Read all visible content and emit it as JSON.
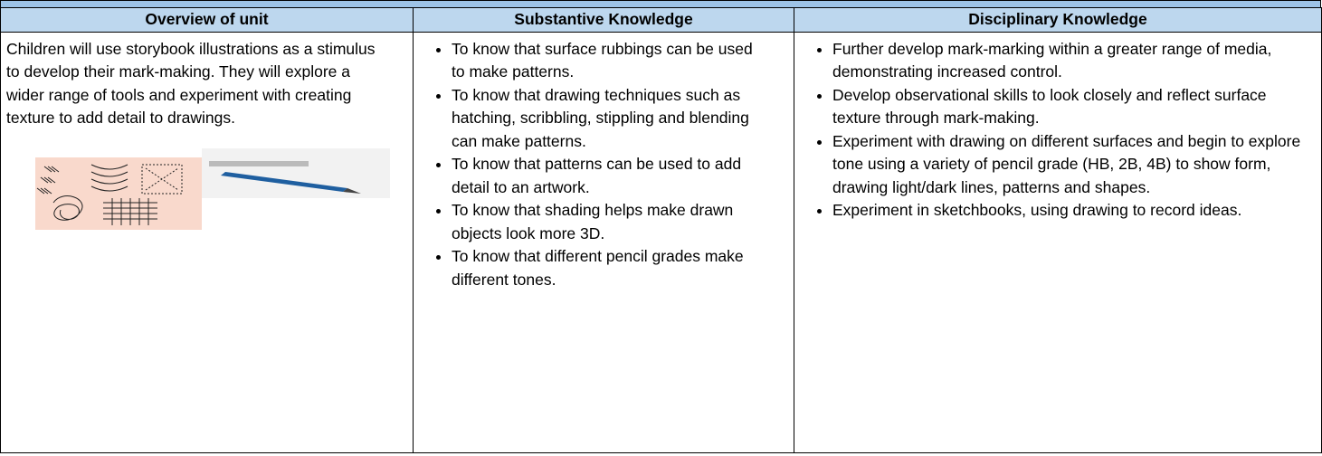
{
  "table": {
    "headers": [
      "Overview of unit",
      "Substantive Knowledge",
      "Disciplinary Knowledge"
    ],
    "overview": "Children will use storybook illustrations as a stimulus to develop their mark-making. They will explore a wider range of tools and experiment with creating texture to add detail to drawings.",
    "substantive": [
      "To know that surface rubbings can be used to make patterns.",
      "To know that drawing techniques such as hatching, scribbling, stippling and blending can make patterns.",
      "To know that patterns can be used to add detail to an artwork.",
      "To know that shading helps make drawn objects look more 3D.",
      "To know that different pencil grades make different tones."
    ],
    "disciplinary": [
      "Further develop mark-marking within a greater range of media, demonstrating increased control.",
      "Develop observational skills to look closely and reflect surface texture through mark-making.",
      "Experiment with drawing on different surfaces and begin to explore tone using a variety of pencil grade (HB, 2B, 4B) to show form, drawing light/dark lines, patterns and shapes.",
      "Experiment in sketchbooks, using drawing to record ideas."
    ]
  }
}
